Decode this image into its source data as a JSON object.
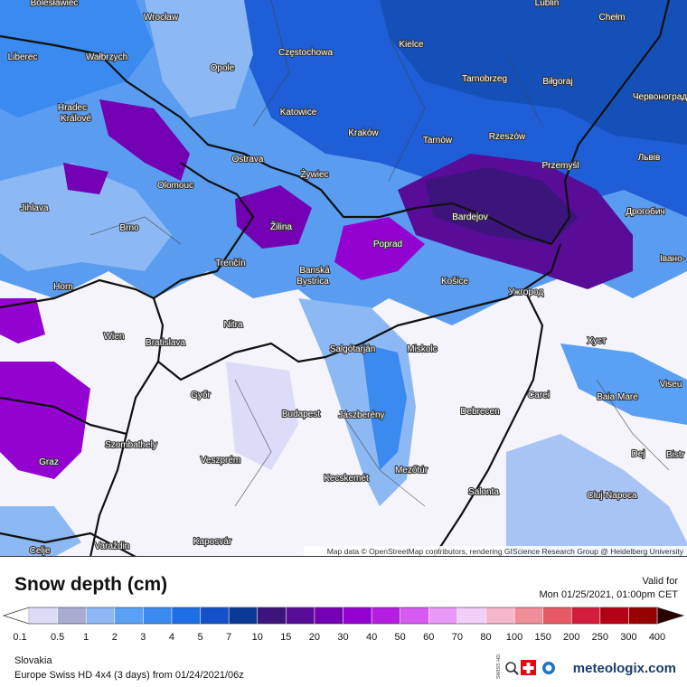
{
  "map": {
    "cities": [
      "Bolesławiec",
      "Wrocław",
      "Lublin",
      "Chełm",
      "Częstochowa",
      "Kielce",
      "Opole",
      "Wałbrzych",
      "Liberec",
      "Tarnobrzeg",
      "Biłgoraj",
      "Червоноград",
      "Hradec",
      "Králové",
      "Katowice",
      "Kraków",
      "Tarnów",
      "Rzeszów",
      "Львів",
      "Ostrava",
      "Przemyśl",
      "Olomouc",
      "Żywiec",
      "Дрогобич",
      "Jihlava",
      "Žilina",
      "Bardejov",
      "Poprad",
      "Brno",
      "Івано-",
      "Trenčín",
      "Banská",
      "Bystrica",
      "Košice",
      "Ужгород",
      "Horn",
      "Nitra",
      "Хуст",
      "Wien",
      "Bratislava",
      "Salgótarján",
      "Miskolc",
      "Viseu",
      "Carei",
      "Baia Mare",
      "Győr",
      "Budapest",
      "Jászberény",
      "Debrecen",
      "Szombathely",
      "Veszprém",
      "Dej",
      "Bistr",
      "Graz",
      "Mezőtúr",
      "Kecskemét",
      "Cluj-Napoca",
      "Salonta",
      "Celje",
      "Varaždin",
      "Kaposvár"
    ],
    "attribution": "Map data © OpenStreetMap contributors, rendering GIScience Research Group @ Heidelberg University"
  },
  "legend": {
    "title": "Snow depth (cm)",
    "valid_label": "Valid for",
    "valid_time": "Mon 01/25/2021, 01:00pm CET",
    "ticks": [
      0.1,
      0.5,
      1,
      2,
      3,
      4,
      5,
      7,
      10,
      15,
      20,
      30,
      40,
      50,
      60,
      70,
      80,
      100,
      150,
      200,
      250,
      300,
      400
    ],
    "colors": [
      "#dcdcf8",
      "#a8acd0",
      "#8cb8f4",
      "#5aa0f4",
      "#3a8af0",
      "#1e6ee6",
      "#1450c8",
      "#0a3a96",
      "#3c147c",
      "#580c98",
      "#7400b4",
      "#9402d2",
      "#b41ee0",
      "#d65af0",
      "#e898f6",
      "#f2cef8",
      "#f6b6cc",
      "#f08e98",
      "#e65a64",
      "#d21e3c",
      "#b40014",
      "#960000"
    ]
  },
  "footer": {
    "region": "Slovakia",
    "model": "Europe Swiss HD 4x4 (3 days) from 01/24/2021/06z",
    "badge": "SWISS HD",
    "brand": "meteologix.com"
  }
}
